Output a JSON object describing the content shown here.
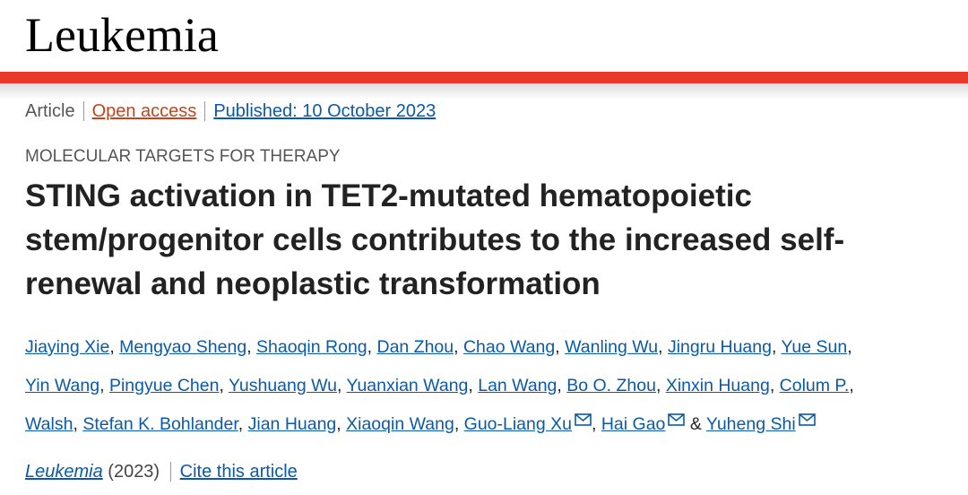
{
  "header": {
    "journal": "Leukemia"
  },
  "meta": {
    "type": "Article",
    "access": "Open access",
    "published": "Published: 10 October 2023"
  },
  "subject": "MOLECULAR TARGETS FOR THERAPY",
  "title": "STING activation in TET2-mutated hematopoietic stem/progenitor cells contributes to the increased self-renewal and neoplastic transformation",
  "authors": [
    {
      "name": "Jiaying Xie"
    },
    {
      "name": "Mengyao Sheng"
    },
    {
      "name": "Shaoqin Rong"
    },
    {
      "name": "Dan Zhou"
    },
    {
      "name": "Chao Wang"
    },
    {
      "name": "Wanling Wu"
    },
    {
      "name": "Jingru Huang"
    },
    {
      "name": "Yue Sun"
    },
    {
      "name": "Yin Wang"
    },
    {
      "name": "Pingyue Chen"
    },
    {
      "name": "Yushuang Wu"
    },
    {
      "name": "Yuanxian Wang"
    },
    {
      "name": "Lan Wang"
    },
    {
      "name": "Bo O. Zhou"
    },
    {
      "name": "Xinxin Huang"
    },
    {
      "name": "Colum P."
    },
    {
      "name": "Walsh"
    },
    {
      "name": "Stefan K. Bohlander"
    },
    {
      "name": "Jian Huang"
    },
    {
      "name": "Xiaoqin Wang"
    },
    {
      "name": "Guo-Liang Xu",
      "email": true
    },
    {
      "name": "Hai Gao",
      "email": true
    },
    {
      "name": "Yuheng Shi",
      "email": true
    }
  ],
  "authors_conjunction": "&",
  "citation": {
    "journal": "Leukemia",
    "year": "(2023)",
    "cite": "Cite this article"
  }
}
